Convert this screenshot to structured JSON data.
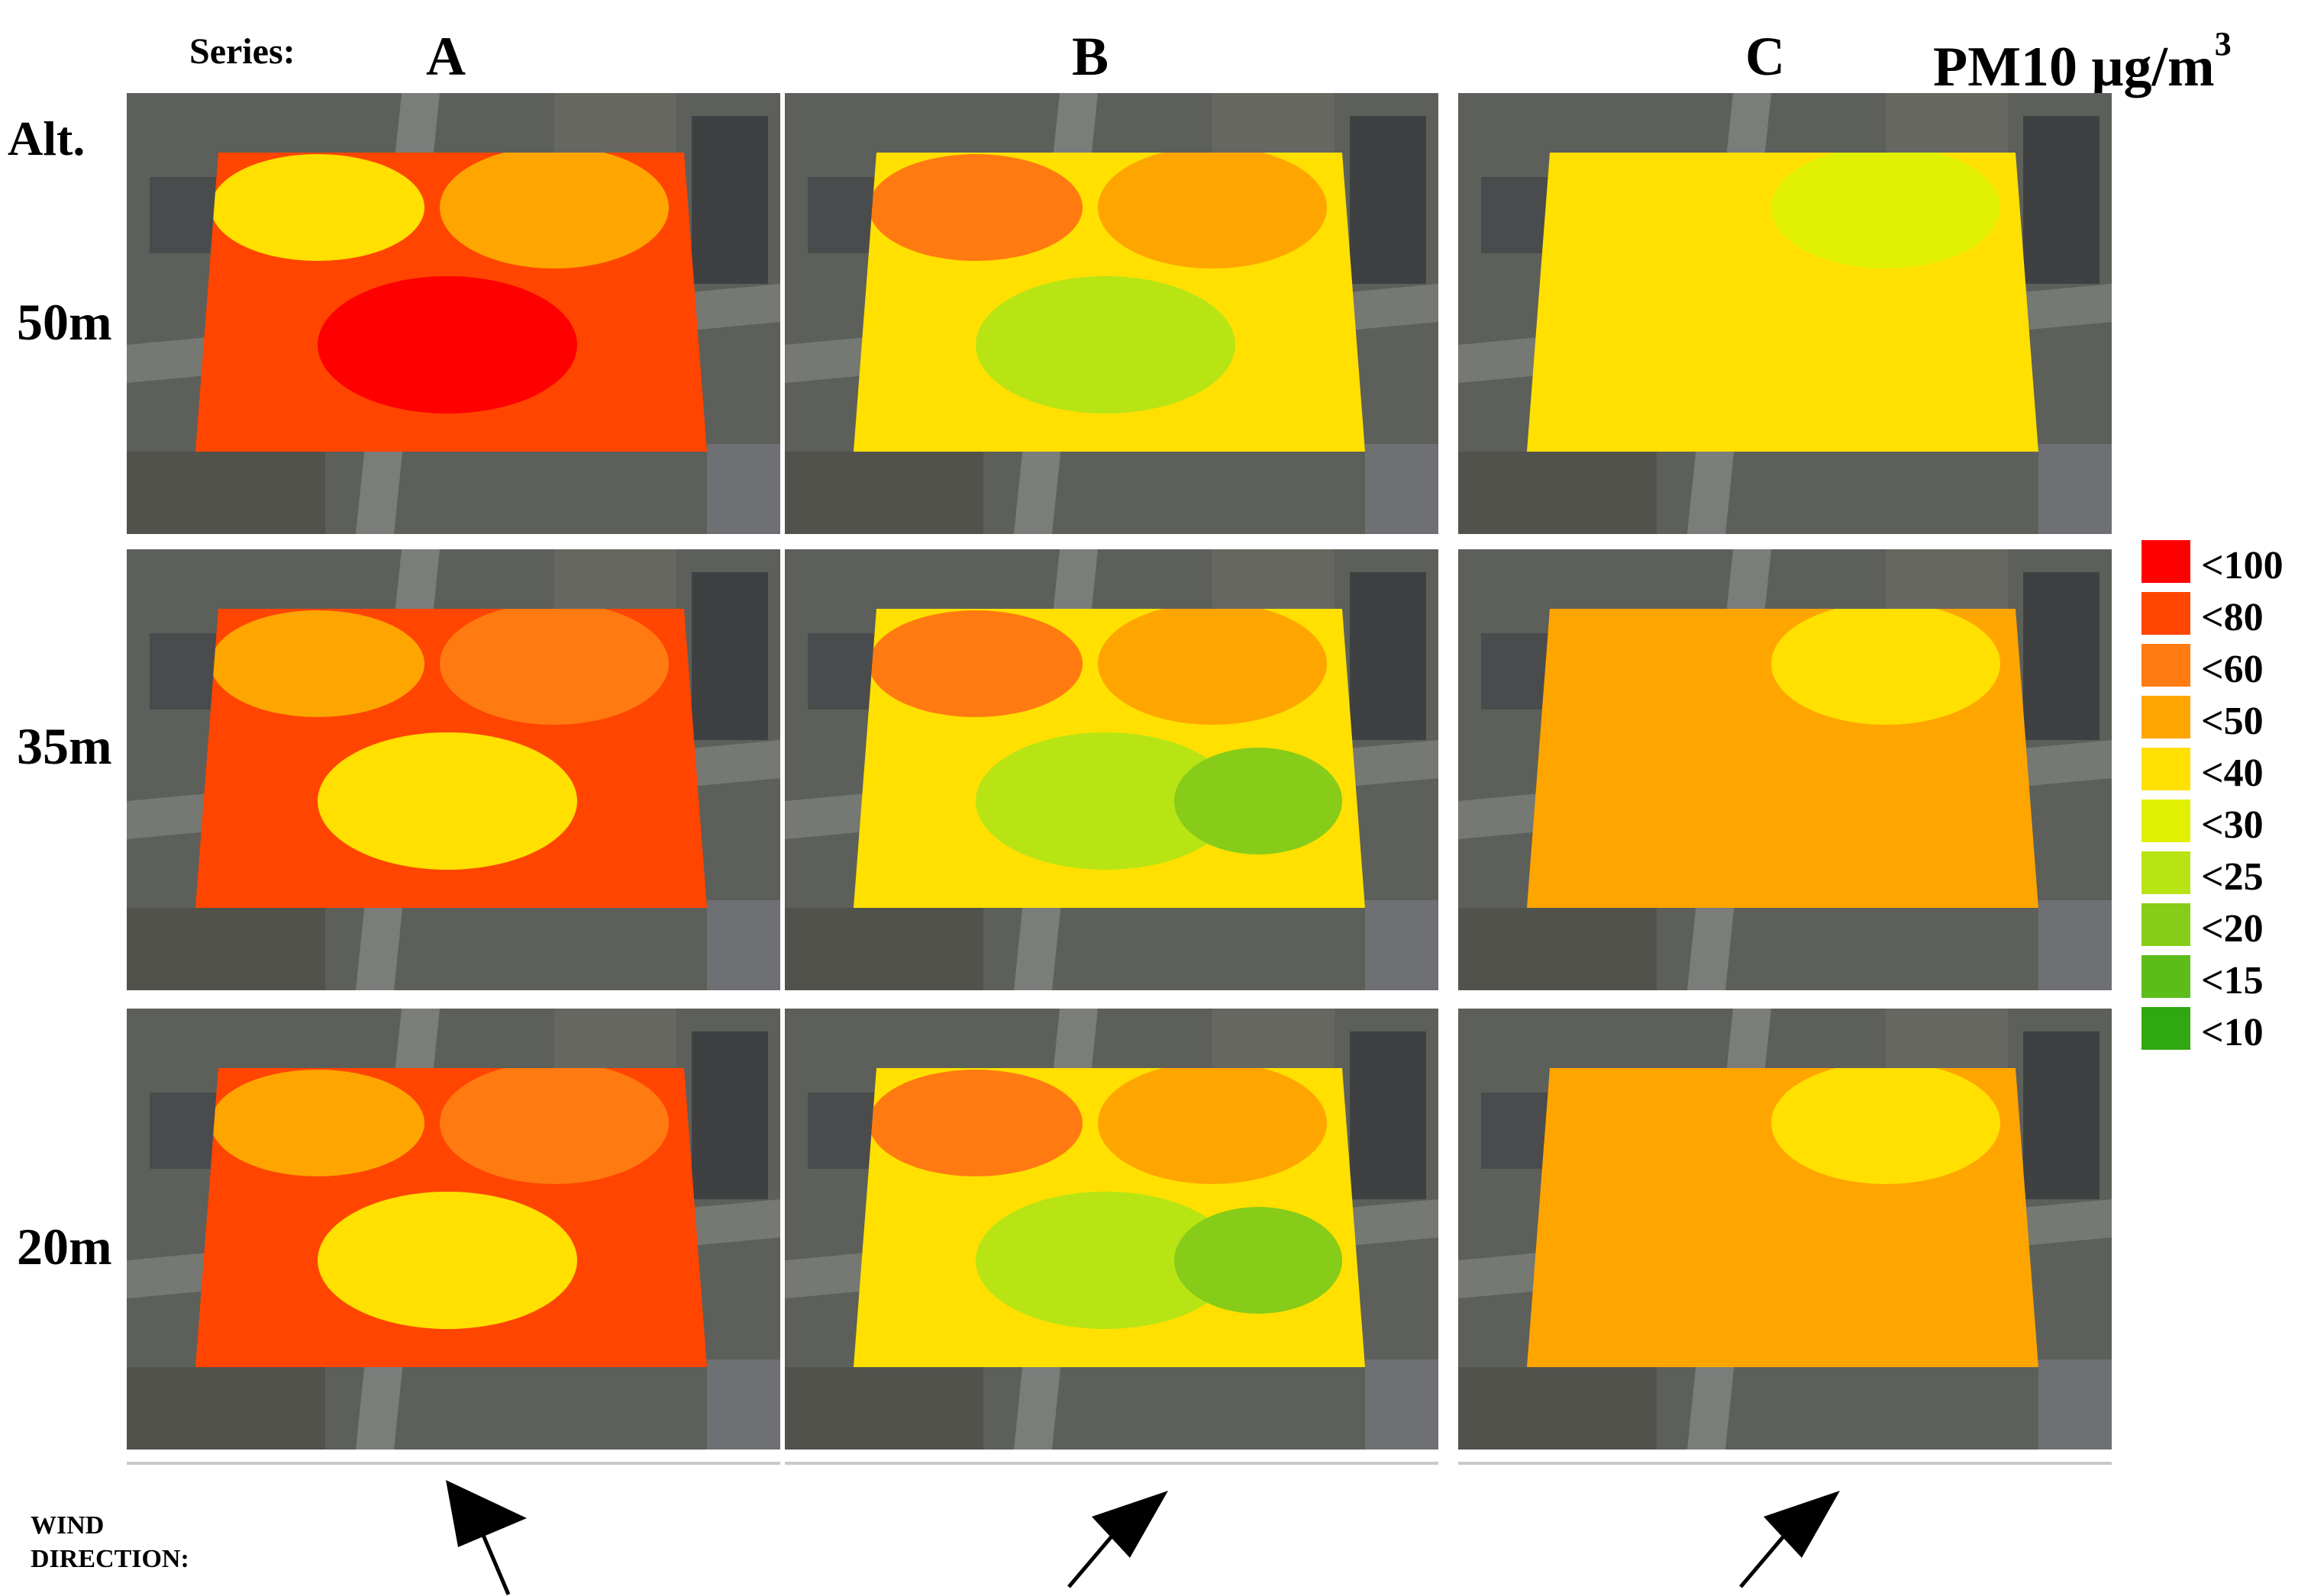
{
  "header": {
    "series_label": "Series:",
    "series": [
      "A",
      "B",
      "C"
    ],
    "unit_title": "PM10 μg/m",
    "unit_superscript": "3"
  },
  "rows": {
    "title": "Alt.",
    "altitudes": [
      "50m",
      "35m",
      "20m"
    ]
  },
  "legend": {
    "items": [
      {
        "label": "<100",
        "color": "#ff0000"
      },
      {
        "label": "<80",
        "color": "#ff4500"
      },
      {
        "label": "<60",
        "color": "#ff7a10"
      },
      {
        "label": "<50",
        "color": "#ffa500"
      },
      {
        "label": "<40",
        "color": "#ffe000"
      },
      {
        "label": "<30",
        "color": "#e1f000"
      },
      {
        "label": "<25",
        "color": "#b8e414"
      },
      {
        "label": "<20",
        "color": "#86cc18"
      },
      {
        "label": "<15",
        "color": "#5cbc1a"
      },
      {
        "label": "<10",
        "color": "#30a810"
      }
    ]
  },
  "wind": {
    "label_line1": "WIND",
    "label_line2": "DIRECTION:",
    "arrows": [
      {
        "series": "A",
        "direction": "from south, pointing north-northwest"
      },
      {
        "series": "B",
        "direction": "from southwest, pointing northeast"
      },
      {
        "series": "C",
        "direction": "from southwest, pointing northeast"
      }
    ]
  },
  "maps": [
    {
      "series": "A",
      "altitude": "50m",
      "dominant_class": "<80",
      "secondary_classes": [
        "<50",
        "<40",
        "<100"
      ]
    },
    {
      "series": "B",
      "altitude": "50m",
      "dominant_class": "<40",
      "secondary_classes": [
        "<50",
        "<60",
        "<25"
      ]
    },
    {
      "series": "C",
      "altitude": "50m",
      "dominant_class": "<40",
      "secondary_classes": [
        "<30"
      ]
    },
    {
      "series": "A",
      "altitude": "35m",
      "dominant_class": "<80",
      "secondary_classes": [
        "<60",
        "<50",
        "<40"
      ]
    },
    {
      "series": "B",
      "altitude": "35m",
      "dominant_class": "<40",
      "secondary_classes": [
        "<50",
        "<60",
        "<25",
        "<20"
      ]
    },
    {
      "series": "C",
      "altitude": "35m",
      "dominant_class": "<50",
      "secondary_classes": [
        "<40"
      ]
    },
    {
      "series": "A",
      "altitude": "20m",
      "dominant_class": "<80",
      "secondary_classes": [
        "<60",
        "<50",
        "<40"
      ]
    },
    {
      "series": "B",
      "altitude": "20m",
      "dominant_class": "<40",
      "secondary_classes": [
        "<50",
        "<60",
        "<25",
        "<20"
      ]
    },
    {
      "series": "C",
      "altitude": "20m",
      "dominant_class": "<50",
      "secondary_classes": [
        "<40"
      ]
    }
  ]
}
